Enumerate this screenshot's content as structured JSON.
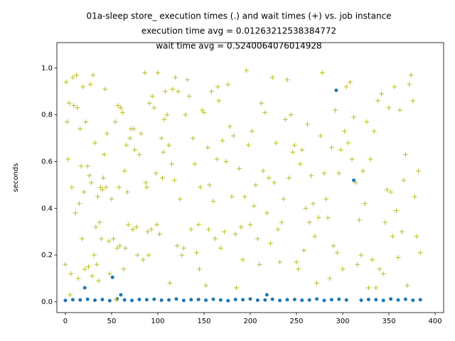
{
  "chart_data": {
    "type": "scatter",
    "title": [
      "01a-sleep store_ execution times (.) and wait times (+) vs. job instance",
      "execution time avg = 0.01263212538384772",
      "wait time avg = 0.5240064076014928"
    ],
    "y_label": "seconds",
    "xlim": [
      -9.2,
      409.2
    ],
    "ylim": [
      -0.046,
      1.109
    ],
    "xticks": [
      0,
      50,
      100,
      150,
      200,
      250,
      300,
      350,
      400
    ],
    "yticks": [
      {
        "value": 0,
        "label": "0.0"
      },
      0.2,
      0.4,
      0.6,
      0.8,
      {
        "value": 1,
        "label": "1.0"
      }
    ],
    "series": [
      {
        "color": "#1f77b4",
        "marker": "o",
        "x": [
          0,
          8,
          16,
          21,
          24,
          32,
          40,
          48,
          51,
          56,
          60,
          64,
          72,
          80,
          88,
          96,
          104,
          112,
          120,
          128,
          136,
          144,
          152,
          160,
          168,
          176,
          184,
          192,
          200,
          208,
          216,
          218,
          224,
          232,
          240,
          248,
          256,
          264,
          272,
          280,
          288,
          293,
          296,
          304,
          312,
          320,
          328,
          336,
          344,
          352,
          360,
          368,
          376,
          384
        ],
        "values": [
          0.006,
          0.009,
          0.008,
          0.06,
          0.011,
          0.007,
          0.01,
          0.005,
          0.105,
          0.012,
          0.03,
          0.008,
          0.006,
          0.01,
          0.009,
          0.011,
          0.007,
          0.008,
          0.012,
          0.006,
          0.009,
          0.01,
          0.007,
          0.011,
          0.008,
          0.005,
          0.01,
          0.009,
          0.012,
          0.007,
          0.008,
          0.03,
          0.011,
          0.006,
          0.009,
          0.01,
          0.007,
          0.008,
          0.012,
          0.006,
          0.009,
          0.905,
          0.011,
          0.008,
          0.52,
          0.007,
          0.01,
          0.009,
          0.006,
          0.012,
          0.008,
          0.011,
          0.007,
          0.009
        ]
      },
      {
        "color": "#bcbd22",
        "marker": "+",
        "x": [
          0,
          1,
          2,
          3,
          4,
          5,
          6,
          7,
          8,
          9,
          11,
          12,
          13,
          14,
          15,
          16,
          17,
          18,
          19,
          20,
          21,
          22,
          24,
          25,
          26,
          27,
          28,
          29,
          30,
          31,
          32,
          33,
          34,
          35,
          36,
          37,
          38,
          39,
          40,
          41,
          42,
          43,
          44,
          45,
          47,
          48,
          50,
          52,
          54,
          55,
          56,
          57,
          58,
          59,
          60,
          62,
          63,
          64,
          65,
          66,
          67,
          68,
          70,
          71,
          73,
          74,
          75,
          77,
          78,
          80,
          82,
          84,
          86,
          87,
          88,
          89,
          90,
          91,
          93,
          94,
          96,
          98,
          99,
          100,
          102,
          104,
          105,
          106,
          107,
          108,
          110,
          112,
          113,
          115,
          116,
          118,
          119,
          121,
          122,
          124,
          126,
          128,
          130,
          132,
          134,
          136,
          138,
          140,
          142,
          144,
          145,
          146,
          148,
          150,
          152,
          154,
          155,
          156,
          158,
          160,
          162,
          164,
          165,
          166,
          168,
          170,
          172,
          174,
          176,
          178,
          180,
          182,
          184,
          185,
          188,
          190,
          192,
          194,
          196,
          198,
          200,
          202,
          204,
          206,
          208,
          210,
          212,
          214,
          216,
          218,
          220,
          222,
          224,
          226,
          228,
          230,
          232,
          234,
          236,
          238,
          240,
          242,
          244,
          246,
          248,
          250,
          252,
          254,
          256,
          258,
          260,
          262,
          264,
          266,
          268,
          270,
          272,
          274,
          276,
          278,
          280,
          282,
          284,
          286,
          288,
          290,
          292,
          294,
          296,
          298,
          300,
          302,
          304,
          306,
          308,
          310,
          312,
          314,
          316,
          318,
          320,
          322,
          324,
          326,
          328,
          330,
          332,
          334,
          336,
          338,
          340,
          342,
          344,
          346,
          348,
          350,
          352,
          354,
          356,
          358,
          360,
          362,
          364,
          366,
          368,
          370,
          372,
          374,
          376,
          378,
          380,
          382,
          384
        ],
        "values": [
          0.16,
          0.94,
          0.77,
          0.61,
          0.85,
          0.03,
          0.12,
          0.49,
          0.96,
          0.84,
          0.38,
          0.97,
          0.83,
          0.1,
          0.42,
          0.74,
          0.58,
          0.27,
          0.92,
          0.47,
          0.14,
          0.77,
          0.58,
          0.15,
          0.54,
          0.93,
          0.51,
          0.11,
          0.97,
          0.2,
          0.68,
          0.32,
          0.16,
          0.45,
          0.09,
          0.34,
          0.49,
          0.27,
          0.48,
          0.53,
          0.63,
          0.91,
          0.49,
          0.72,
          0.26,
          0.12,
          0.44,
          0.27,
          0.77,
          0.01,
          0.23,
          0.84,
          0.49,
          0.24,
          0.83,
          0.81,
          0.14,
          0.56,
          0.23,
          0.67,
          0.47,
          0.33,
          0.7,
          0.74,
          0.31,
          0.74,
          0.65,
          0.32,
          0.2,
          0.63,
          0.72,
          0.18,
          0.98,
          0.51,
          0.49,
          0.3,
          0.2,
          0.85,
          0.31,
          0.88,
          0.83,
          0.55,
          0.33,
          0.98,
          0.29,
          0.7,
          0.53,
          0.64,
          0.78,
          0.9,
          0.8,
          0.67,
          0.08,
          0.59,
          0.91,
          0.52,
          0.96,
          0.24,
          0.9,
          0.44,
          0.2,
          0.23,
          0.8,
          0.95,
          0.88,
          0.31,
          0.7,
          0.59,
          0.21,
          0.33,
          0.14,
          0.49,
          0.82,
          0.81,
          0.07,
          0.66,
          0.31,
          0.5,
          0.9,
          0.43,
          0.27,
          0.61,
          0.92,
          0.86,
          0.23,
          0.69,
          0.3,
          0.6,
          0.93,
          0.75,
          0.45,
          0.71,
          0.29,
          0.06,
          0.57,
          0.32,
          0.18,
          0.45,
          0.99,
          0.67,
          0.33,
          0.73,
          0.41,
          0.5,
          0.27,
          0.16,
          0.85,
          0.56,
          0.81,
          0.38,
          0.53,
          0.25,
          0.96,
          0.51,
          0.68,
          0.31,
          0.17,
          0.34,
          0.44,
          0.78,
          0.95,
          0.53,
          0.8,
          0.64,
          0.67,
          0.17,
          0.14,
          0.59,
          0.65,
          0.22,
          0.4,
          0.76,
          0.34,
          0.54,
          0.42,
          0.28,
          0.08,
          0.36,
          0.71,
          0.98,
          0.55,
          0.44,
          0.36,
          0.1,
          0.66,
          0.24,
          0.82,
          0.21,
          0.55,
          0.65,
          0.14,
          0.73,
          0.92,
          0.68,
          0.94,
          0.61,
          0.79,
          0.51,
          0.16,
          0.35,
          0.2,
          0.56,
          0.42,
          0.77,
          0.06,
          0.61,
          0.18,
          0.73,
          0.06,
          0.86,
          0.14,
          0.89,
          0.12,
          0.34,
          0.48,
          0.83,
          0.47,
          0.28,
          0.92,
          0.39,
          0.19,
          0.82,
          0.3,
          0.52,
          0.63,
          0.07,
          0.93,
          0.97,
          0.86,
          0.45,
          0.28,
          0.56,
          0.21
        ]
      }
    ]
  }
}
